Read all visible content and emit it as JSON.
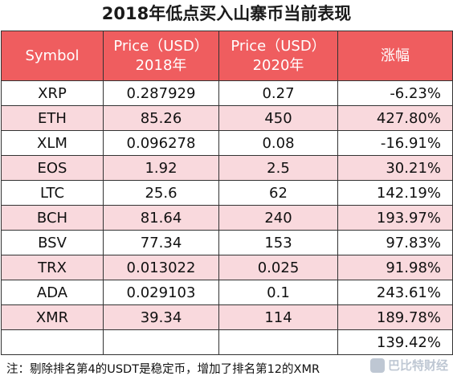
{
  "title": "2018年低点买入山寨币当前表现",
  "table": {
    "headers": [
      {
        "line1": "Symbol",
        "line2": ""
      },
      {
        "line1": "Price（USD）",
        "line2": "2018年"
      },
      {
        "line1": "Price（USD）",
        "line2": "2020年"
      },
      {
        "line1": "涨幅",
        "line2": ""
      }
    ],
    "rows": [
      [
        "XRP",
        "0.287929",
        "0.27",
        "-6.23%"
      ],
      [
        "ETH",
        "85.26",
        "450",
        "427.80%"
      ],
      [
        "XLM",
        "0.096278",
        "0.08",
        "-16.91%"
      ],
      [
        "EOS",
        "1.92",
        "2.5",
        "30.21%"
      ],
      [
        "LTC",
        "25.6",
        "62",
        "142.19%"
      ],
      [
        "BCH",
        "81.64",
        "240",
        "193.97%"
      ],
      [
        "BSV",
        "77.34",
        "153",
        "97.83%"
      ],
      [
        "TRX",
        "0.013022",
        "0.025",
        "91.98%"
      ],
      [
        "ADA",
        "0.029103",
        "0.1",
        "243.61%"
      ],
      [
        "XMR",
        "39.34",
        "114",
        "189.78%"
      ]
    ],
    "total_row": [
      "",
      "",
      "",
      "139.42%"
    ]
  },
  "note": "注：剔除排名第4的USDT是稳定币，增加了排名第12的XMR",
  "watermark": {
    "text": "巴比特财经",
    "icon": "brand-logo-icon"
  },
  "colors": {
    "header_bg": "#ef5d5f",
    "band_bg": "#f9d9dd",
    "header_text": "#ffffff"
  }
}
